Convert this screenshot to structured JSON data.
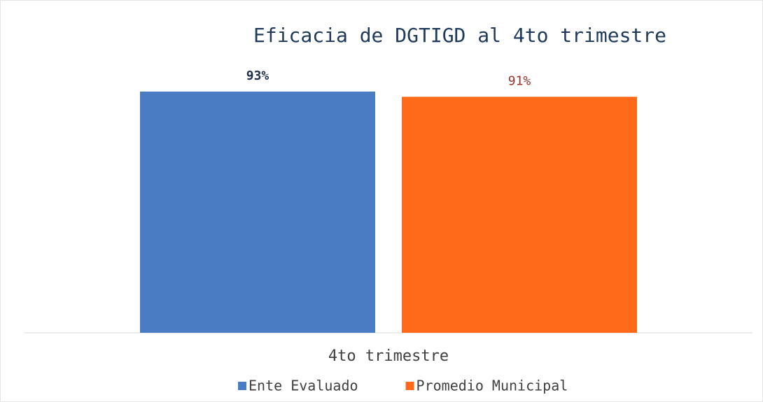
{
  "chart_data": {
    "type": "bar",
    "title": "Eficacia de DGTIGD al 4to trimestre",
    "categories": [
      "4to trimestre"
    ],
    "series": [
      {
        "name": "Ente Evaluado",
        "color": "#4a7cc4",
        "label_color": "#1f2d4d",
        "values": [
          93
        ],
        "value_labels": [
          "93%"
        ]
      },
      {
        "name": "Promedio Municipal",
        "color": "#ff6a1a",
        "label_color": "#a0302a",
        "values": [
          91
        ],
        "value_labels": [
          "91%"
        ]
      }
    ],
    "ylim": [
      0,
      100
    ],
    "legend": "bottom"
  }
}
